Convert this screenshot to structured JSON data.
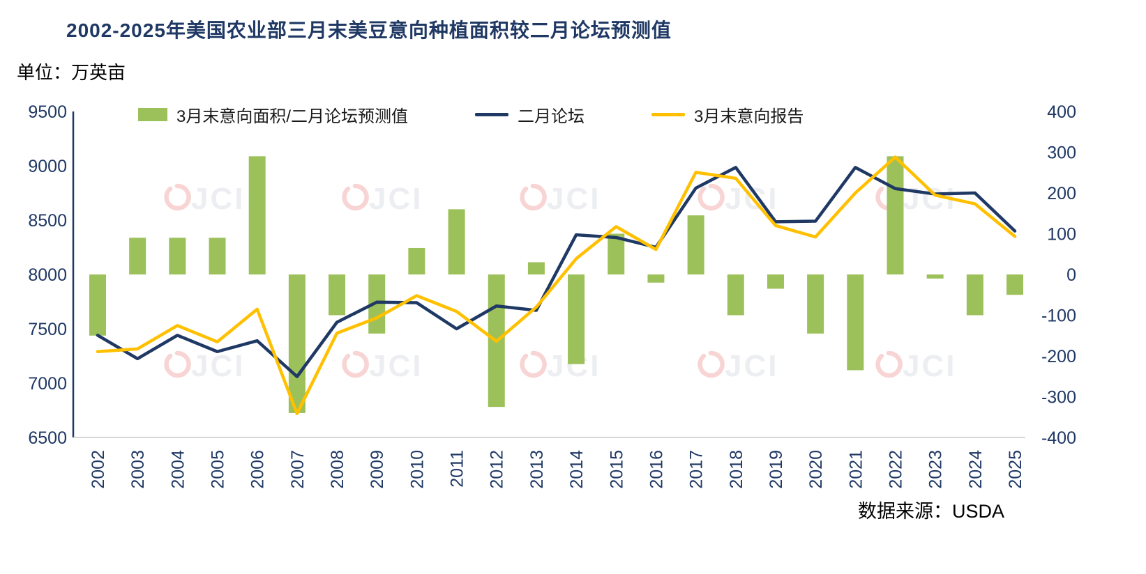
{
  "title": "2002-2025年美国农业部三月末美豆意向种植面积较二月论坛预测值",
  "unit_label": "单位：万英亩",
  "source": "数据来源：USDA",
  "watermark": "JCI",
  "chart_data": {
    "type": "bar",
    "subtype": "combo: bars = difference (right axis), two lines = area levels (left axis)",
    "title": "2002-2025年美国农业部三月末美豆意向种植面积较二月论坛预测值",
    "ylabel": "万英亩",
    "grid": "off",
    "legend_position": "top",
    "categories": [
      "2002",
      "2003",
      "2004",
      "2005",
      "2006",
      "2007",
      "2008",
      "2009",
      "2010",
      "2011",
      "2012",
      "2013",
      "2014",
      "2015",
      "2016",
      "2017",
      "2018",
      "2019",
      "2020",
      "2021",
      "2022",
      "2023",
      "2024",
      "2025"
    ],
    "left_axis": {
      "min": 6500,
      "max": 9500,
      "step": 500,
      "ticks": [
        9500,
        9000,
        8500,
        8000,
        7500,
        7000,
        6500
      ]
    },
    "right_axis": {
      "min": -400,
      "max": 400,
      "step": 100,
      "ticks": [
        400,
        300,
        200,
        100,
        0,
        -100,
        -200,
        -300,
        -400
      ]
    },
    "series": [
      {
        "name": "3月末意向面积/二月论坛预测值",
        "type": "bar",
        "axis": "right",
        "color": "#9CC05A",
        "values": [
          -150,
          90,
          90,
          90,
          290,
          -340,
          -100,
          -145,
          65,
          160,
          -325,
          30,
          -220,
          100,
          -20,
          145,
          -100,
          -35,
          -145,
          -235,
          290,
          -10,
          -100,
          -50
        ]
      },
      {
        "name": "二月论坛",
        "type": "line",
        "axis": "left",
        "color": "#1F3864",
        "values": [
          7440,
          7225,
          7440,
          7290,
          7390,
          7060,
          7560,
          7745,
          7740,
          7500,
          7710,
          7670,
          8365,
          8340,
          8250,
          8795,
          8985,
          8485,
          8490,
          8985,
          8790,
          8740,
          8750,
          8400
        ]
      },
      {
        "name": "3月末意向报告",
        "type": "line",
        "axis": "left",
        "color": "#FFC000",
        "values": [
          7290,
          7315,
          7530,
          7380,
          7680,
          6720,
          7460,
          7600,
          7805,
          7660,
          7385,
          7700,
          8145,
          8440,
          8230,
          8940,
          8885,
          8450,
          8345,
          8750,
          9080,
          8730,
          8650,
          8350
        ]
      }
    ]
  }
}
